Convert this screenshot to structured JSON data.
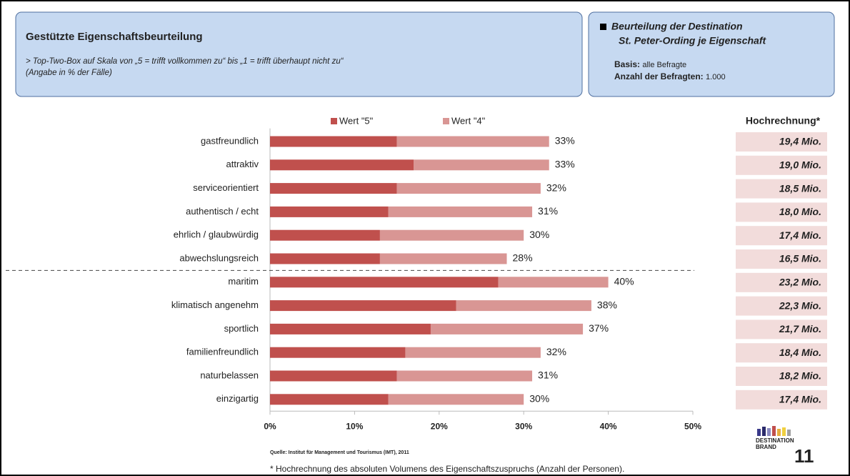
{
  "header": {
    "title": "Gestützte Eigenschaftsbeurteilung",
    "subtitle_lines": [
      "> Top-Two-Box auf Skala von „5 = trifft vollkommen zu“ bis „1 = trifft überhaupt nicht zu“",
      "(Angabe in % der Fälle)"
    ],
    "box2_title_lines": [
      "Beurteilung der Destination",
      "St. Peter-Ording je Eigenschaft"
    ],
    "basis_label": "Basis:",
    "basis_value": "alle Befragte",
    "count_label": "Anzahl der Befragten:",
    "count_value": "1.000"
  },
  "chart_data": {
    "type": "bar",
    "orientation": "horizontal",
    "stacked": true,
    "categories": [
      "gastfreundlich",
      "attraktiv",
      "serviceorientiert",
      "authentisch / echt",
      "ehrlich / glaubwürdig",
      "abwechslungsreich",
      "maritim",
      "klimatisch angenehm",
      "sportlich",
      "familienfreundlich",
      "naturbelassen",
      "einzigartig"
    ],
    "series": [
      {
        "name": "Wert \"5\"",
        "color": "#c0504d",
        "values": [
          15,
          17,
          15,
          14,
          13,
          13,
          27,
          22,
          19,
          16,
          15,
          14
        ]
      },
      {
        "name": "Wert \"4\"",
        "color": "#d99694",
        "values": [
          18,
          16,
          17,
          17,
          17,
          15,
          13,
          16,
          18,
          16,
          16,
          16
        ]
      }
    ],
    "totals": [
      33,
      33,
      32,
      31,
      30,
      28,
      40,
      38,
      37,
      32,
      31,
      30
    ],
    "total_labels": [
      "33%",
      "33%",
      "32%",
      "31%",
      "30%",
      "28%",
      "40%",
      "38%",
      "37%",
      "32%",
      "31%",
      "30%"
    ],
    "xlim": [
      0,
      50
    ],
    "xticks": [
      {
        "value": 0,
        "label": "0%"
      },
      {
        "value": 10,
        "label": "10%"
      },
      {
        "value": 20,
        "label": "20%"
      },
      {
        "value": 30,
        "label": "30%"
      },
      {
        "value": 40,
        "label": "40%"
      },
      {
        "value": 50,
        "label": "50%"
      }
    ]
  },
  "projection": {
    "title": "Hochrechnung*",
    "values": [
      "19,4 Mio.",
      "19,0 Mio.",
      "18,5 Mio.",
      "18,0 Mio.",
      "17,4 Mio.",
      "16,5 Mio.",
      "23,2 Mio.",
      "22,3 Mio.",
      "21,7 Mio.",
      "18,4 Mio.",
      "18,2 Mio.",
      "17,4 Mio."
    ]
  },
  "source": "Quelle: Institut für Management und Tourismus (IMT), 2011",
  "footnote": "* Hochrechnung des absoluten Volumens des Eigenschaftszuspruchs (Anzahl der Personen).",
  "logo": {
    "line1": "DESTINATION",
    "line2": "BRAND",
    "number": "11"
  }
}
